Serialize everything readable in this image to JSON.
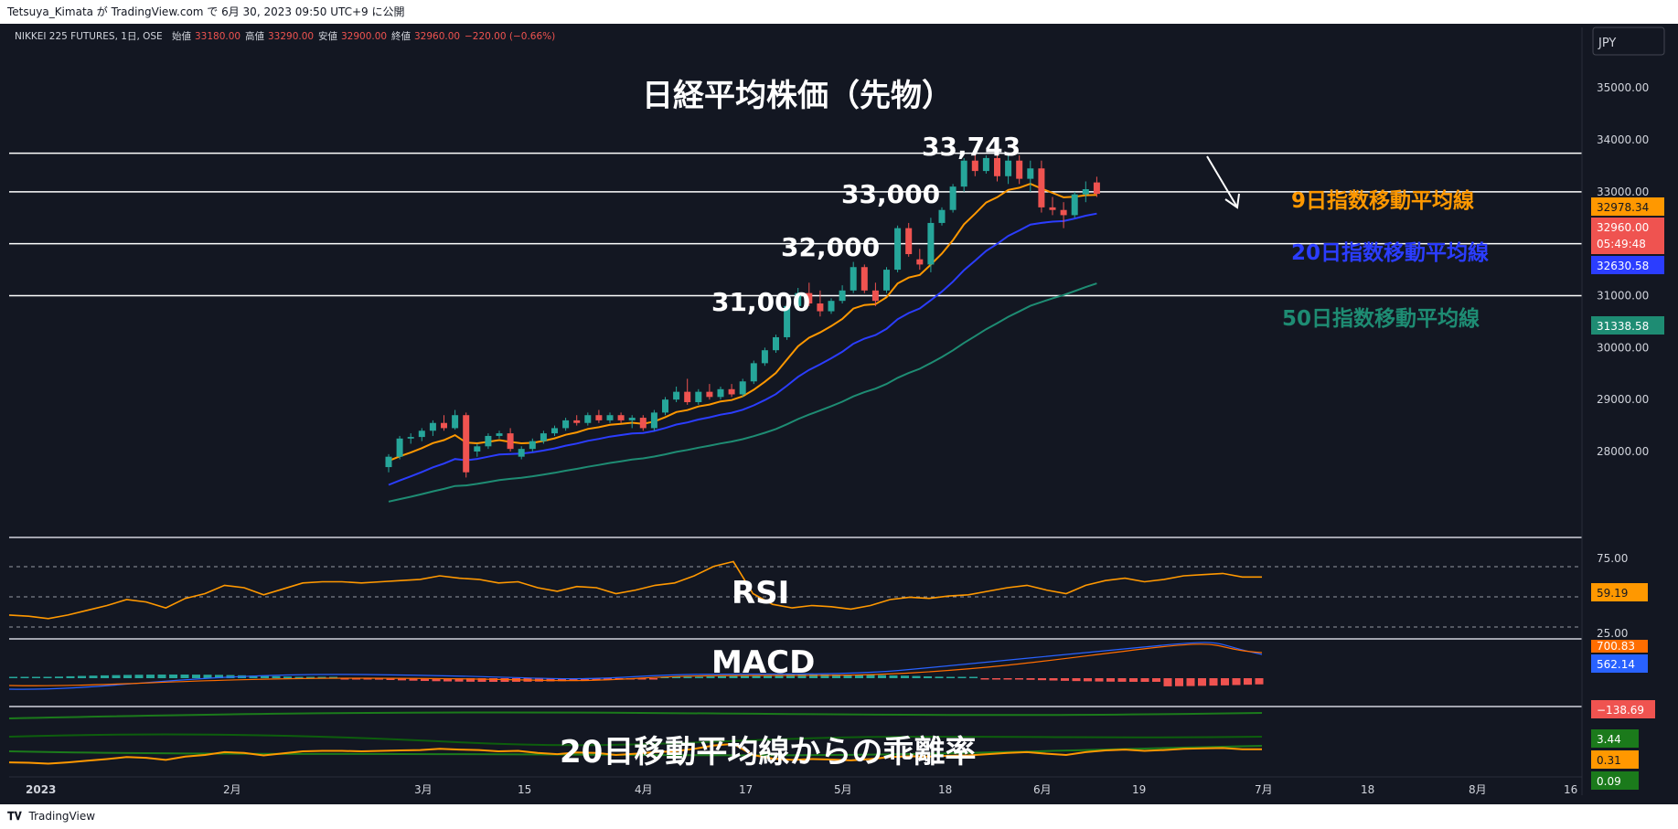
{
  "header": {
    "publish_line": "Tetsuya_Kimata が TradingView.com で 6月 30, 2023 09:50 UTC+9 に公開"
  },
  "footer": {
    "brand": "TradingView",
    "logo": "tv-logo-icon"
  },
  "symbol_bar": {
    "symbol": "NIKKEI 225 FUTURES, 1日, OSE",
    "open_label": "始値",
    "open": "33180.00",
    "high_label": "高値",
    "high": "33290.00",
    "low_label": "安値",
    "low": "32900.00",
    "close_label": "終値",
    "close": "32960.00",
    "change": "−220.00 (−0.66%)"
  },
  "currency": "JPY",
  "annotations": {
    "title": "日経平均株価（先物）",
    "level_33743": "33,743",
    "level_33000": "33,000",
    "level_32000": "32,000",
    "level_31000": "31,000",
    "ema9_label": "9日指数移動平均線",
    "ema20_label": "20日指数移動平均線",
    "ema50_label": "50日指数移動平均線",
    "rsi_label": "RSI",
    "macd_label": "MACD",
    "dev_label": "20日移動平均線からの乖離率"
  },
  "colors": {
    "bg": "#131722",
    "up": "#26a69a",
    "down": "#ef5350",
    "ema9": "#ff9800",
    "ema20": "#2b3dff",
    "ema50": "#1e8c73",
    "rsi": "#ff9800",
    "band": "#1b7a1b",
    "axis_text": "#d1d4dc"
  },
  "price_axis": {
    "ticks": [
      "35000.00",
      "34000.00",
      "33000.00",
      "32000.00",
      "31000.00",
      "30000.00",
      "29000.00",
      "28000.00"
    ],
    "tags": [
      {
        "text": "32978.34",
        "color": "#ff9800"
      },
      {
        "text": "32960.00",
        "color": "#ef5350"
      },
      {
        "text": "05:49:48",
        "color": "#ef5350"
      },
      {
        "text": "32630.58",
        "color": "#2b3dff"
      },
      {
        "text": "31338.58",
        "color": "#1e8c73"
      }
    ]
  },
  "rsi_axis": {
    "ticks": [
      "75.00",
      "25.00"
    ],
    "tag": "59.19"
  },
  "macd_axis": {
    "tags": [
      "700.83",
      "562.14",
      "−138.69"
    ]
  },
  "dev_axis": {
    "tags": [
      "3.44",
      "0.31",
      "0.09"
    ]
  },
  "time_axis": {
    "labels": [
      "2023",
      "2月",
      "3月",
      "15",
      "4月",
      "17",
      "5月",
      "18",
      "6月",
      "19",
      "7月",
      "18",
      "8月",
      "16"
    ]
  },
  "chart_data": {
    "type": "candlestick",
    "symbol": "NIKKEI 225 FUTURES",
    "price_range": [
      28000,
      35200
    ],
    "horizontal_levels": [
      33743,
      33000,
      32000,
      31000
    ],
    "candles": [
      {
        "o": 27700,
        "h": 27950,
        "l": 27600,
        "c": 27900
      },
      {
        "o": 27900,
        "h": 28300,
        "l": 27850,
        "c": 28250
      },
      {
        "o": 28250,
        "h": 28350,
        "l": 28150,
        "c": 28280
      },
      {
        "o": 28280,
        "h": 28450,
        "l": 28200,
        "c": 28400
      },
      {
        "o": 28400,
        "h": 28600,
        "l": 28300,
        "c": 28550
      },
      {
        "o": 28550,
        "h": 28700,
        "l": 28400,
        "c": 28450
      },
      {
        "o": 28450,
        "h": 28800,
        "l": 28420,
        "c": 28700
      },
      {
        "o": 28700,
        "h": 28750,
        "l": 27500,
        "c": 27600
      },
      {
        "o": 28000,
        "h": 28150,
        "l": 27900,
        "c": 28100
      },
      {
        "o": 28100,
        "h": 28350,
        "l": 28050,
        "c": 28300
      },
      {
        "o": 28300,
        "h": 28400,
        "l": 28250,
        "c": 28350
      },
      {
        "o": 28350,
        "h": 28450,
        "l": 28000,
        "c": 28050
      },
      {
        "o": 27900,
        "h": 28100,
        "l": 27850,
        "c": 28050
      },
      {
        "o": 28050,
        "h": 28250,
        "l": 28000,
        "c": 28200
      },
      {
        "o": 28200,
        "h": 28400,
        "l": 28150,
        "c": 28350
      },
      {
        "o": 28350,
        "h": 28500,
        "l": 28300,
        "c": 28450
      },
      {
        "o": 28450,
        "h": 28650,
        "l": 28400,
        "c": 28600
      },
      {
        "o": 28600,
        "h": 28700,
        "l": 28500,
        "c": 28550
      },
      {
        "o": 28550,
        "h": 28750,
        "l": 28500,
        "c": 28700
      },
      {
        "o": 28700,
        "h": 28800,
        "l": 28550,
        "c": 28600
      },
      {
        "o": 28600,
        "h": 28750,
        "l": 28550,
        "c": 28700
      },
      {
        "o": 28700,
        "h": 28750,
        "l": 28550,
        "c": 28600
      },
      {
        "o": 28600,
        "h": 28700,
        "l": 28450,
        "c": 28650
      },
      {
        "o": 28650,
        "h": 28700,
        "l": 28400,
        "c": 28450
      },
      {
        "o": 28450,
        "h": 28800,
        "l": 28400,
        "c": 28750
      },
      {
        "o": 28750,
        "h": 29050,
        "l": 28700,
        "c": 29000
      },
      {
        "o": 29000,
        "h": 29250,
        "l": 28950,
        "c": 29150
      },
      {
        "o": 29150,
        "h": 29400,
        "l": 28900,
        "c": 28950
      },
      {
        "o": 28950,
        "h": 29200,
        "l": 28900,
        "c": 29150
      },
      {
        "o": 29150,
        "h": 29300,
        "l": 29000,
        "c": 29050
      },
      {
        "o": 29050,
        "h": 29250,
        "l": 29000,
        "c": 29200
      },
      {
        "o": 29200,
        "h": 29300,
        "l": 29050,
        "c": 29100
      },
      {
        "o": 29100,
        "h": 29400,
        "l": 29050,
        "c": 29350
      },
      {
        "o": 29350,
        "h": 29750,
        "l": 29300,
        "c": 29700
      },
      {
        "o": 29700,
        "h": 30000,
        "l": 29650,
        "c": 29950
      },
      {
        "o": 29950,
        "h": 30250,
        "l": 29900,
        "c": 30200
      },
      {
        "o": 30200,
        "h": 30850,
        "l": 30150,
        "c": 30800
      },
      {
        "o": 30800,
        "h": 31150,
        "l": 30750,
        "c": 31050
      },
      {
        "o": 31050,
        "h": 31250,
        "l": 30800,
        "c": 30850
      },
      {
        "o": 30850,
        "h": 31100,
        "l": 30600,
        "c": 30700
      },
      {
        "o": 30700,
        "h": 30950,
        "l": 30650,
        "c": 30900
      },
      {
        "o": 30900,
        "h": 31200,
        "l": 30850,
        "c": 31100
      },
      {
        "o": 31100,
        "h": 31650,
        "l": 31050,
        "c": 31550
      },
      {
        "o": 31550,
        "h": 31600,
        "l": 31050,
        "c": 31100
      },
      {
        "o": 31100,
        "h": 31250,
        "l": 30800,
        "c": 30900
      },
      {
        "o": 31100,
        "h": 31550,
        "l": 31050,
        "c": 31500
      },
      {
        "o": 31500,
        "h": 32350,
        "l": 31450,
        "c": 32300
      },
      {
        "o": 32300,
        "h": 32400,
        "l": 31750,
        "c": 31800
      },
      {
        "o": 31700,
        "h": 31900,
        "l": 31500,
        "c": 31600
      },
      {
        "o": 31600,
        "h": 32500,
        "l": 31450,
        "c": 32400
      },
      {
        "o": 32400,
        "h": 32700,
        "l": 32350,
        "c": 32650
      },
      {
        "o": 32650,
        "h": 33150,
        "l": 32600,
        "c": 33100
      },
      {
        "o": 33100,
        "h": 33650,
        "l": 33000,
        "c": 33600
      },
      {
        "o": 33600,
        "h": 33750,
        "l": 33300,
        "c": 33400
      },
      {
        "o": 33400,
        "h": 33700,
        "l": 33350,
        "c": 33650
      },
      {
        "o": 33650,
        "h": 33900,
        "l": 33200,
        "c": 33300
      },
      {
        "o": 33300,
        "h": 33700,
        "l": 33150,
        "c": 33600
      },
      {
        "o": 33600,
        "h": 33700,
        "l": 33150,
        "c": 33250
      },
      {
        "o": 33250,
        "h": 33600,
        "l": 33000,
        "c": 33450
      },
      {
        "o": 33450,
        "h": 33600,
        "l": 32600,
        "c": 32700
      },
      {
        "o": 32700,
        "h": 32900,
        "l": 32550,
        "c": 32650
      },
      {
        "o": 32650,
        "h": 32800,
        "l": 32300,
        "c": 32550
      },
      {
        "o": 32550,
        "h": 33000,
        "l": 32500,
        "c": 32950
      },
      {
        "o": 32950,
        "h": 33200,
        "l": 32800,
        "c": 33050
      },
      {
        "o": 33180,
        "h": 33290,
        "l": 32900,
        "c": 32960
      }
    ],
    "ema9_last": 32978.34,
    "ema20_last": 32630.58,
    "ema50_last": 31338.58,
    "rsi": {
      "range": [
        0,
        100
      ],
      "levels": [
        75,
        50,
        25
      ],
      "values": [
        27,
        26,
        24,
        27,
        31,
        35,
        40,
        38,
        33,
        41,
        45,
        52,
        50,
        44,
        49,
        54,
        55,
        55,
        54,
        55,
        56,
        57,
        60,
        58,
        57,
        54,
        55,
        50,
        47,
        51,
        50,
        45,
        48,
        52,
        54,
        60,
        68,
        72,
        45,
        36,
        33,
        35,
        34,
        32,
        35,
        40,
        42,
        41,
        43,
        44,
        47,
        50,
        52,
        48,
        45,
        52,
        56,
        58,
        55,
        57,
        60,
        61,
        62,
        59,
        59
      ]
    },
    "macd": {
      "tags": [
        700.83,
        562.14,
        -138.69
      ]
    },
    "deviation": {
      "tags": [
        3.44,
        0.31,
        0.09
      ]
    }
  }
}
